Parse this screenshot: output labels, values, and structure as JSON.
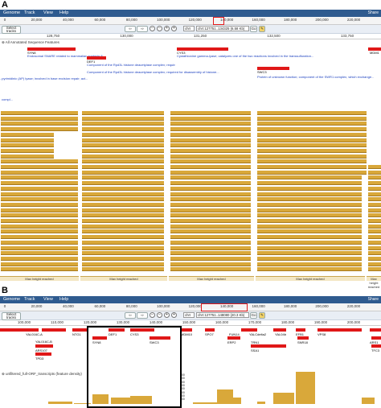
{
  "panelA": {
    "letter": "A",
    "menu": [
      "Genome",
      "Track",
      "View",
      "Help"
    ],
    "share": "Share",
    "overview_ticks": [
      "0",
      "20,000",
      "40,000",
      "60,000",
      "80,000",
      "100,000",
      "120,000",
      "140,000",
      "160,000",
      "180,000",
      "200,000",
      "220,000"
    ],
    "select_tracks": "Select tracks",
    "ref_seq": "chrI",
    "location": "chrI:127751..134325 (6.58 Kb)",
    "go": "Go",
    "scale_ticks": [
      "128,750",
      "130,000",
      "131,250",
      "132,500",
      "133,750"
    ],
    "annot_track": "All Annotated Sequence Features",
    "features": [
      {
        "label": "SYN8",
        "desc": "Endosomal SNARE related to mammalian syntaxin 8"
      },
      {
        "label": "DEF1",
        "desc": "Component of the Rpd3L histone deacetylase complex; required for disassembly..."
      },
      {
        "label": "CYS3",
        "desc": "Cystathionine gamma-lyase; catalyzes one of the two reactions involved in the transsulfuration..."
      },
      {
        "label": "SWC3",
        "desc": "Protein of unknown function; component of the SWR1 complex, which exchange..."
      },
      {
        "label": "MDM1",
        "desc": ""
      }
    ],
    "desc_left1": "..pyrimidinic (AP) lyase; involved in base excision repair; act...",
    "desc_left2": "compl...",
    "desc_mid": "Component of the Rpd3L histone deacetylase complex; required for disassembly of histone...",
    "transcripts_track": "unfiltered_full-ORF_transcripts",
    "max_height": "Max height reached"
  },
  "panelB": {
    "letter": "B",
    "menu": [
      "Genome",
      "Track",
      "View",
      "Help"
    ],
    "share": "Share",
    "overview_ticks": [
      "0",
      "20,000",
      "40,000",
      "60,000",
      "80,000",
      "100,000",
      "120,000",
      "140,000",
      "160,000",
      "180,000",
      "200,000",
      "220,000"
    ],
    "select_tracks": "Select tracks",
    "ref_seq": "chrI",
    "location": "chrI:127751..148080 (20.3 Kb)",
    "go": "Go",
    "scale_ticks": [
      "100,000",
      "110,000",
      "120,000",
      "130,000",
      "140,000",
      "150,000",
      "160,000",
      "170,000",
      "180,000",
      "190,000",
      "200,000"
    ],
    "gene_labels_row1": [
      "YAL016C-A",
      "NTG1",
      "DEF1",
      "CYS3",
      "MDM10",
      "SPO7",
      "FUN14",
      "YAL04b",
      "EFB1",
      "VPS8"
    ],
    "gene_labels_row2": [
      "SYN8",
      "SWC3",
      "ERP2",
      "TRN1",
      "SNR18",
      "ARS1"
    ],
    "gene_labels_row3": [
      "YAL016C-B",
      "SSA1",
      "TFC3"
    ],
    "gene_labels_row4": [
      "ARS107",
      "TPD3"
    ],
    "gene_label_extra": "YALCdelta2",
    "transcripts_track": "unfiltered_full-ORF_transcripts",
    "density_note": "(feature density)",
    "y_ticks": [
      "800",
      "700",
      "600",
      "500",
      "400",
      "300",
      "200",
      "100",
      "0"
    ]
  },
  "colors": {
    "menubar": "#2f5b8f",
    "feature": "#e01818",
    "transcript": "#d9a83a",
    "link": "#1a3fbf"
  }
}
